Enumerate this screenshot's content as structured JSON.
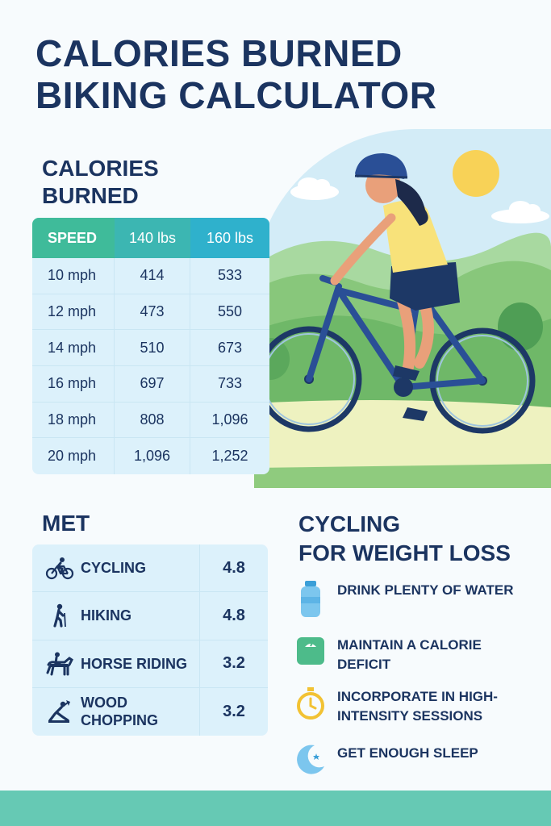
{
  "title": {
    "line1": "CALORIES BURNED",
    "line2": "BIKING CALCULATOR"
  },
  "calories": {
    "heading_line1": "CALORIES",
    "heading_line2": "BURNED",
    "headers": [
      "SPEED",
      "140 lbs",
      "160 lbs"
    ],
    "rows": [
      [
        "10 mph",
        "414",
        "533"
      ],
      [
        "12 mph",
        "473",
        "550"
      ],
      [
        "14 mph",
        "510",
        "673"
      ],
      [
        "16 mph",
        "697",
        "733"
      ],
      [
        "18 mph",
        "808",
        "1,096"
      ],
      [
        "20 mph",
        "1,096",
        "1,252"
      ]
    ]
  },
  "met": {
    "heading": "MET",
    "rows": [
      {
        "icon": "cyclist-icon",
        "label": "CYCLING",
        "value": "4.8"
      },
      {
        "icon": "hiker-icon",
        "label": "HIKING",
        "value": "4.8"
      },
      {
        "icon": "horse-rider-icon",
        "label": "HORSE RIDING",
        "value": "3.2"
      },
      {
        "icon": "wood-chopping-icon",
        "label": "WOOD CHOPPING",
        "label_line1": "WOOD",
        "label_line2": "CHOPPING",
        "value": "3.2"
      }
    ]
  },
  "weight_loss": {
    "heading_line1": "CYCLING",
    "heading_line2": "FOR WEIGHT LOSS",
    "tips": [
      {
        "icon": "water-bottle-icon",
        "text": "DRINK PLENTY OF WATER"
      },
      {
        "icon": "scale-icon",
        "text": "MAINTAIN A CALORIE DEFICIT"
      },
      {
        "icon": "stopwatch-icon",
        "text": "INCORPORATE IN HIGH-INTENSITY SESSIONS"
      },
      {
        "icon": "moon-icon",
        "text": "GET ENOUGH SLEEP"
      }
    ]
  },
  "colors": {
    "navy": "#1b3460",
    "table_bg": "#dcf1fb",
    "header_speed": "#3fbb9a",
    "header_140": "#3cb6b2",
    "header_160": "#2fb1cc",
    "footer": "#66c9b4"
  }
}
